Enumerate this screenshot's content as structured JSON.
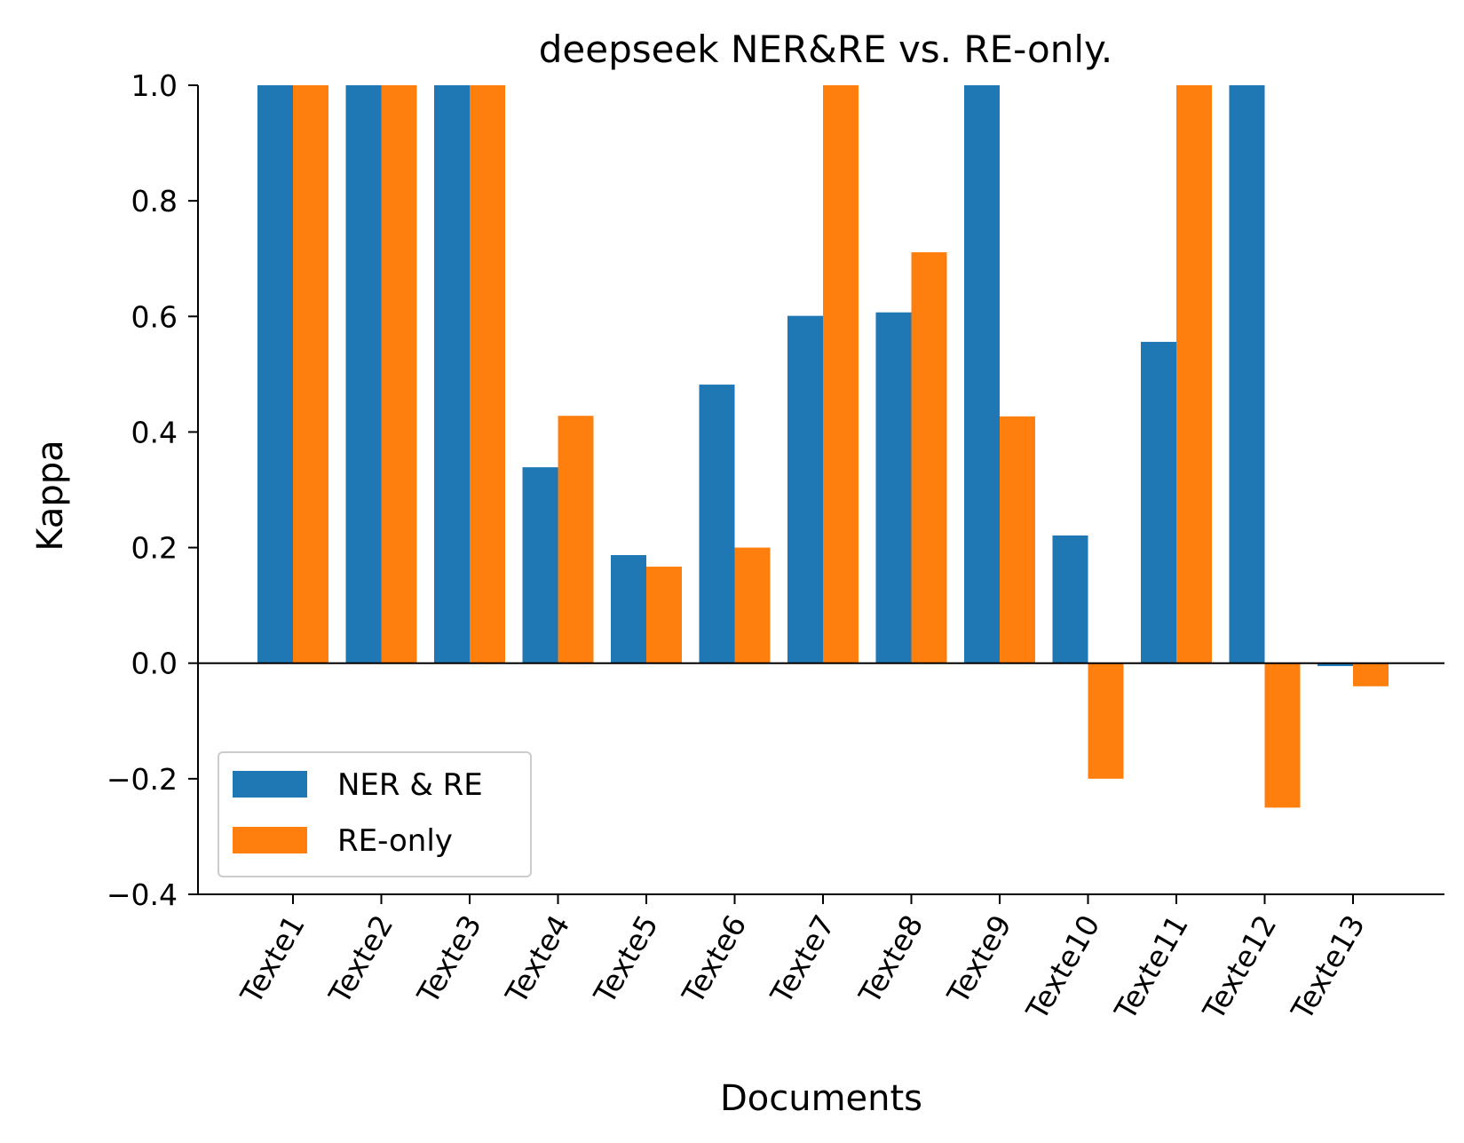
{
  "chart_data": {
    "type": "bar",
    "title": "deepseek NER&RE vs. RE-only.",
    "xlabel": "Documents",
    "ylabel": "Kappa",
    "categories": [
      "Texte1",
      "Texte2",
      "Texte3",
      "Texte4",
      "Texte5",
      "Texte6",
      "Texte7",
      "Texte8",
      "Texte9",
      "Texte10",
      "Texte11",
      "Texte12",
      "Texte13"
    ],
    "series": [
      {
        "name": "NER & RE",
        "color": "#1f77b4",
        "values": [
          1.0,
          1.0,
          1.0,
          0.339,
          0.187,
          0.482,
          0.601,
          0.607,
          1.0,
          0.221,
          0.556,
          1.0,
          -0.005
        ]
      },
      {
        "name": "RE-only",
        "color": "#ff7f0e",
        "values": [
          1.0,
          1.0,
          1.0,
          0.428,
          0.167,
          0.2,
          1.0,
          0.711,
          0.427,
          -0.2,
          1.0,
          -0.25,
          -0.04
        ]
      }
    ],
    "ylim": [
      -0.4,
      1.0
    ],
    "yticks": [
      -0.4,
      -0.2,
      0.0,
      0.2,
      0.4,
      0.6,
      0.8,
      1.0
    ],
    "ytick_labels": [
      "−0.4",
      "−0.2",
      "0.0",
      "0.2",
      "0.4",
      "0.6",
      "0.8",
      "1.0"
    ],
    "zero_line": true,
    "grid": false,
    "legend_position": "lower-left"
  }
}
